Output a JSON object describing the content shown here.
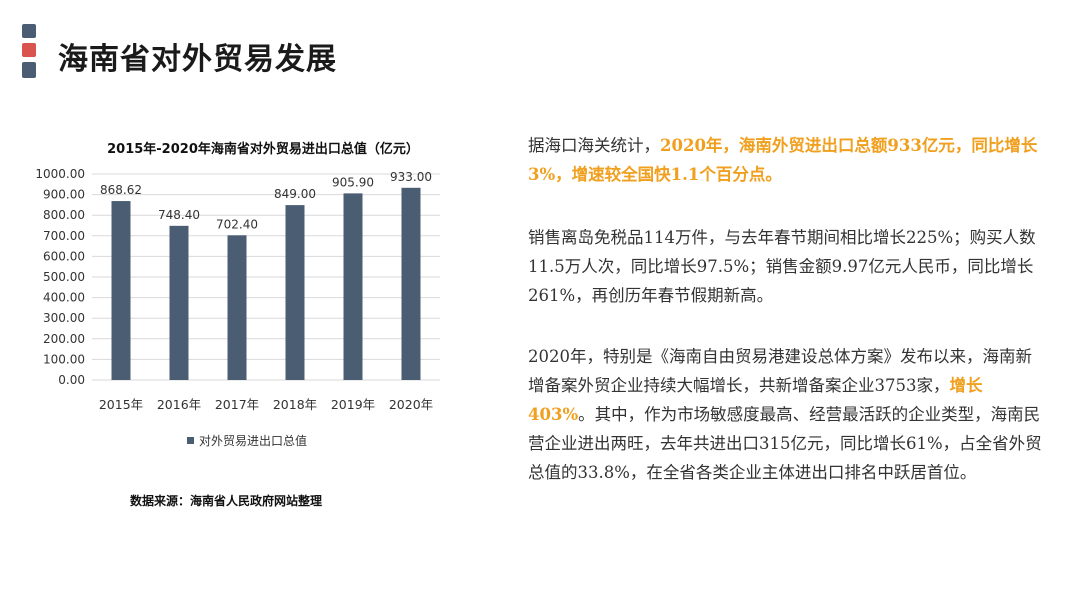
{
  "page": {
    "title": "海南省对外贸易发展",
    "deco_colors": [
      "#4a5d73",
      "#d9534f",
      "#4a5d73"
    ]
  },
  "chart_data": {
    "type": "bar",
    "title": "2015年-2020年海南省对外贸易进出口总值（亿元）",
    "categories": [
      "2015年",
      "2016年",
      "2017年",
      "2018年",
      "2019年",
      "2020年"
    ],
    "series": [
      {
        "name": "对外贸易进出口总值",
        "values": [
          868.62,
          748.4,
          702.4,
          849.0,
          905.9,
          933.0
        ],
        "color": "#4a5d73"
      }
    ],
    "data_labels": [
      "868.62",
      "748.40",
      "702.40",
      "849.00",
      "905.90",
      "933.00"
    ],
    "ylim": [
      0,
      1000
    ],
    "yticks": [
      "0.00",
      "100.00",
      "200.00",
      "300.00",
      "400.00",
      "500.00",
      "600.00",
      "700.00",
      "800.00",
      "900.00",
      "1000.00"
    ],
    "grid": true,
    "legend_position": "bottom",
    "xlabel": "",
    "ylabel": ""
  },
  "source": "数据来源：海南省人民政府网站整理",
  "paragraphs": [
    [
      {
        "t": "据海口海关统计，"
      },
      {
        "t": "2020年，海南外贸进出口总额933亿元，同比增长3%，增速较全国快1.1个百分点。",
        "hl": true
      }
    ],
    [
      {
        "t": "销售离岛免税品114万件，与去年春节期间相比增长225%；购买人数11.5万人次，同比增长97.5%；销售金额9.97亿元人民币，同比增长261%，再创历年春节假期新高。"
      }
    ],
    [
      {
        "t": "2020年，特别是《海南自由贸易港建设总体方案》发布以来，海南新增备案外贸企业持续大幅增长，共新增备案企业3753家，"
      },
      {
        "t": "增长403%",
        "hl": true
      },
      {
        "t": "。其中，作为市场敏感度最高、经营最活跃的企业类型，海南民营企业进出两旺，去年共进出口315亿元，同比增长61%，占全省外贸总值的33.8%，在全省各类企业主体进出口排名中跃居首位。"
      }
    ]
  ],
  "highlight_color": "#f0a01e"
}
